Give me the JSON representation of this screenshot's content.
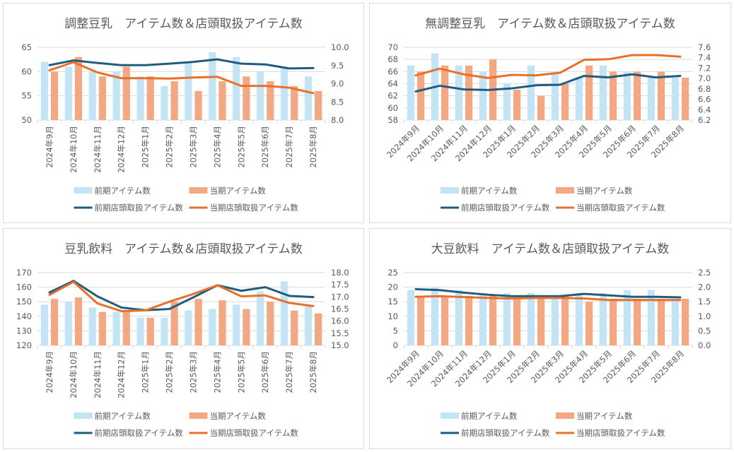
{
  "colors": {
    "prev_items": "#C3E4F5",
    "curr_items": "#F2A983",
    "prev_store": "#1F5C7E",
    "curr_store": "#E8702A",
    "grid": "#D9D9D9",
    "text": "#595959"
  },
  "chart_data": [
    {
      "type": "bar",
      "title": "調整豆乳　アイテム数＆店頭取扱アイテム数",
      "categories": [
        "2024年9月",
        "2024年10月",
        "2024年11月",
        "2024年12月",
        "2025年1月",
        "2025年2月",
        "2025年3月",
        "2025年4月",
        "2025年5月",
        "2025年6月",
        "2025年7月",
        "2025年8月"
      ],
      "xlabel_rotation": "vertical",
      "ylim": [
        50,
        65
      ],
      "yticks": [
        "50",
        "55",
        "60",
        "65"
      ],
      "y2lim": [
        8.0,
        10.0
      ],
      "y2ticks": [
        "8.0",
        "8.5",
        "9.0",
        "9.5",
        "10.0"
      ],
      "grid": true,
      "legend": "bottom",
      "series": [
        {
          "name": "前期アイテム数",
          "kind": "bar",
          "axis": "left",
          "values": [
            62,
            61,
            60,
            60,
            59,
            57,
            62,
            64,
            63,
            60,
            61,
            59
          ]
        },
        {
          "name": "当期アイテム数",
          "kind": "bar",
          "axis": "left",
          "values": [
            60,
            63,
            59,
            61,
            59,
            58,
            56,
            58,
            59,
            58,
            57,
            56
          ]
        },
        {
          "name": "前期店頭取扱アイテム数",
          "kind": "line",
          "axis": "right",
          "values": [
            9.51,
            9.64,
            9.57,
            9.51,
            9.51,
            9.55,
            9.6,
            9.67,
            9.55,
            9.53,
            9.42,
            9.43
          ]
        },
        {
          "name": "当期店頭取扱アイテム数",
          "kind": "line",
          "axis": "right",
          "values": [
            9.37,
            9.59,
            9.31,
            9.15,
            9.15,
            9.14,
            9.17,
            9.19,
            8.94,
            8.94,
            8.89,
            8.74
          ]
        }
      ]
    },
    {
      "type": "bar",
      "title": "無調整豆乳　アイテム数＆店頭取扱アイテム数",
      "categories": [
        "2024年9月",
        "2024年10月",
        "2024年11月",
        "2024年12月",
        "2025年1月",
        "2025年2月",
        "2025年3月",
        "2025年4月",
        "2025年5月",
        "2025年6月",
        "2025年7月",
        "2025年8月"
      ],
      "xlabel_rotation": "diagonal",
      "ylim": [
        58,
        70
      ],
      "yticks": [
        "58",
        "60",
        "62",
        "64",
        "66",
        "68",
        "70"
      ],
      "y2lim": [
        6.2,
        7.6
      ],
      "y2ticks": [
        "6.2",
        "6.4",
        "6.6",
        "6.8",
        "7.0",
        "7.2",
        "7.4",
        "7.6"
      ],
      "grid": true,
      "legend": "bottom",
      "series": [
        {
          "name": "前期アイテム数",
          "kind": "bar",
          "axis": "left",
          "values": [
            67,
            69,
            67,
            66,
            64,
            67,
            66,
            65,
            67,
            66,
            65,
            65
          ]
        },
        {
          "name": "当期アイテム数",
          "kind": "bar",
          "axis": "left",
          "values": [
            66,
            67,
            67,
            68,
            63,
            62,
            64,
            67,
            66,
            66,
            66,
            65
          ]
        },
        {
          "name": "前期店頭取扱アイテム数",
          "kind": "line",
          "axis": "right",
          "values": [
            6.75,
            6.86,
            6.79,
            6.78,
            6.81,
            6.87,
            6.88,
            7.05,
            7.02,
            7.08,
            7.02,
            7.05
          ]
        },
        {
          "name": "当期店頭取扱アイテム数",
          "kind": "line",
          "axis": "right",
          "values": [
            7.06,
            7.19,
            7.08,
            7.01,
            7.07,
            7.06,
            7.11,
            7.36,
            7.37,
            7.45,
            7.45,
            7.42
          ]
        }
      ]
    },
    {
      "type": "bar",
      "title": "豆乳飲料　アイテム数＆店頭取扱アイテム数",
      "categories": [
        "2024年9月",
        "2024年10月",
        "2024年11月",
        "2024年12月",
        "2025年1月",
        "2025年2月",
        "2025年3月",
        "2025年4月",
        "2025年5月",
        "2025年6月",
        "2025年7月",
        "2025年8月"
      ],
      "xlabel_rotation": "vertical",
      "ylim": [
        120,
        170
      ],
      "yticks": [
        "120",
        "130",
        "140",
        "150",
        "160",
        "170"
      ],
      "y2lim": [
        15.0,
        18.0
      ],
      "y2ticks": [
        "15.0",
        "15.5",
        "16.0",
        "16.5",
        "17.0",
        "17.5",
        "18.0"
      ],
      "grid": true,
      "legend": "bottom",
      "series": [
        {
          "name": "前期アイテム数",
          "kind": "bar",
          "axis": "left",
          "values": [
            148,
            150,
            146,
            143,
            139,
            139,
            144,
            145,
            148,
            157,
            164,
            147
          ]
        },
        {
          "name": "当期アイテム数",
          "kind": "bar",
          "axis": "left",
          "values": [
            152,
            153,
            143,
            144,
            139,
            150,
            152,
            151,
            145,
            150,
            144,
            142
          ]
        },
        {
          "name": "前期店頭取扱アイテム数",
          "kind": "line",
          "axis": "right",
          "values": [
            17.18,
            17.66,
            17.02,
            16.56,
            16.45,
            16.5,
            16.98,
            17.48,
            17.25,
            17.4,
            17.04,
            16.99
          ]
        },
        {
          "name": "当期店頭取扱アイテム数",
          "kind": "line",
          "axis": "right",
          "values": [
            17.08,
            17.62,
            16.73,
            16.41,
            16.44,
            16.8,
            17.12,
            17.48,
            17.02,
            17.06,
            16.75,
            16.62
          ]
        }
      ]
    },
    {
      "type": "bar",
      "title": "大豆飲料　アイテム数＆店頭取扱アイテム数",
      "categories": [
        "2024年9月",
        "2024年10月",
        "2024年11月",
        "2024年12月",
        "2025年1月",
        "2025年2月",
        "2025年3月",
        "2025年4月",
        "2025年5月",
        "2025年6月",
        "2025年7月",
        "2025年8月"
      ],
      "xlabel_rotation": "diagonal",
      "ylim": [
        0,
        25
      ],
      "yticks": [
        "0",
        "5",
        "10",
        "15",
        "20",
        "25"
      ],
      "y2lim": [
        0.0,
        2.5
      ],
      "y2ticks": [
        "0.0",
        "0.5",
        "1.0",
        "1.5",
        "2.0",
        "2.5"
      ],
      "grid": true,
      "legend": "bottom",
      "series": [
        {
          "name": "前期アイテム数",
          "kind": "bar",
          "axis": "left",
          "values": [
            19,
            20,
            19,
            18,
            18,
            18,
            17,
            18,
            18,
            19,
            19,
            16
          ]
        },
        {
          "name": "当期アイテム数",
          "kind": "bar",
          "axis": "left",
          "values": [
            17,
            17,
            17,
            17,
            16,
            17,
            17,
            15,
            16,
            16,
            16,
            16
          ]
        },
        {
          "name": "前期店頭取扱アイテム数",
          "kind": "line",
          "axis": "right",
          "values": [
            1.93,
            1.9,
            1.81,
            1.74,
            1.69,
            1.69,
            1.69,
            1.77,
            1.72,
            1.67,
            1.67,
            1.65
          ]
        },
        {
          "name": "当期店頭取扱アイテム数",
          "kind": "line",
          "axis": "right",
          "values": [
            1.67,
            1.69,
            1.66,
            1.63,
            1.61,
            1.63,
            1.63,
            1.61,
            1.56,
            1.56,
            1.56,
            1.56
          ]
        }
      ]
    }
  ]
}
